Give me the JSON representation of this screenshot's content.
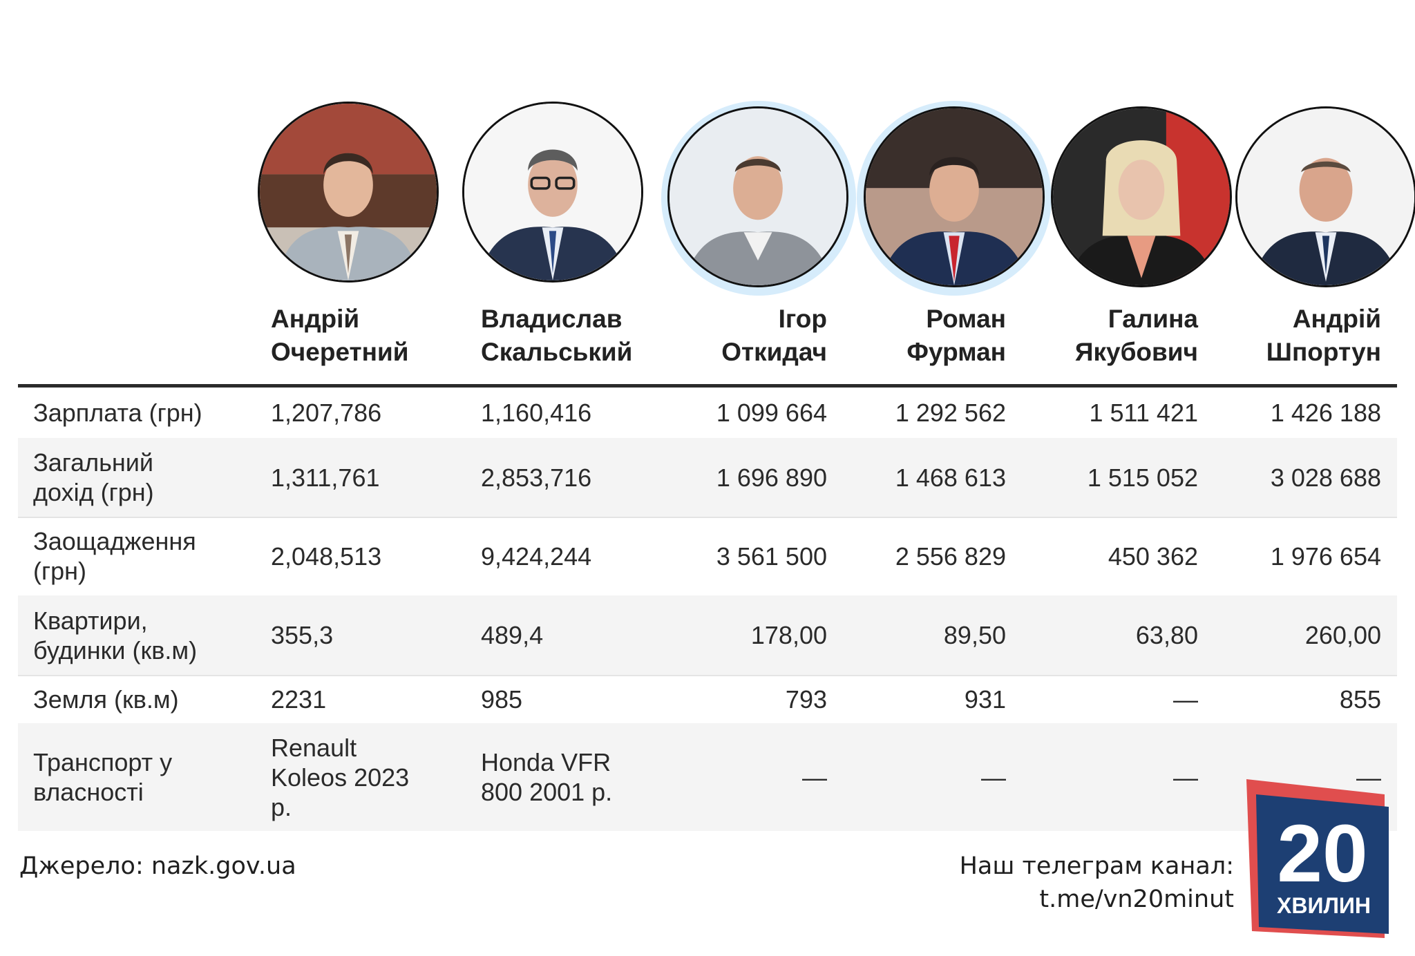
{
  "people": [
    {
      "first": "Андрій",
      "last": "Очеретний"
    },
    {
      "first": "Владислав",
      "last": "Скальський"
    },
    {
      "first": "Ігор",
      "last": "Откидач"
    },
    {
      "first": "Роман",
      "last": "Фурман"
    },
    {
      "first": "Галина",
      "last": "Якубович"
    },
    {
      "first": "Андрій",
      "last": "Шпортун"
    }
  ],
  "rows": [
    {
      "label": [
        "Зарплата (грн)"
      ],
      "values": [
        [
          "1,207,786"
        ],
        [
          "1,160,416"
        ],
        [
          "1 099 664"
        ],
        [
          "1 292 562"
        ],
        [
          "1 511 421"
        ],
        [
          "1 426 188"
        ]
      ]
    },
    {
      "label": [
        "Загальний",
        "дохід (грн)"
      ],
      "values": [
        [
          "1,311,761"
        ],
        [
          "2,853,716"
        ],
        [
          "1 696 890"
        ],
        [
          "1 468 613"
        ],
        [
          "1 515 052"
        ],
        [
          "3 028 688"
        ]
      ]
    },
    {
      "label": [
        "Заощадження",
        "(грн)"
      ],
      "values": [
        [
          "2,048,513"
        ],
        [
          "9,424,244"
        ],
        [
          "3 561 500"
        ],
        [
          "2 556 829"
        ],
        [
          "450 362"
        ],
        [
          "1 976 654"
        ]
      ]
    },
    {
      "label": [
        "Квартири,",
        "будинки (кв.м)"
      ],
      "values": [
        [
          "355,3"
        ],
        [
          "489,4"
        ],
        [
          "178,00"
        ],
        [
          "89,50"
        ],
        [
          "63,80"
        ],
        [
          "260,00"
        ]
      ]
    },
    {
      "label": [
        "Земля (кв.м)"
      ],
      "values": [
        [
          "2231"
        ],
        [
          "985"
        ],
        [
          "793"
        ],
        [
          "931"
        ],
        [
          "—"
        ],
        [
          "855"
        ]
      ]
    },
    {
      "label": [
        "Транспорт у",
        "власності"
      ],
      "values": [
        [
          "Renault",
          "Koleos 2023",
          "р."
        ],
        [
          "Honda VFR",
          "800 2001 р."
        ],
        [
          "—"
        ],
        [
          "—"
        ],
        [
          "—"
        ],
        [
          "—"
        ]
      ]
    }
  ],
  "footer": {
    "source": "Джерело: nazk.gov.ua",
    "telegram_label": "Наш телеграм канал:",
    "telegram_link": "t.me/vn20minut"
  },
  "logo": {
    "number": "20",
    "word": "ХВИЛИН"
  },
  "colors": {
    "logo_blue": "#1d3f73",
    "logo_red": "#e04e4e",
    "rule": "#2b2b2b",
    "row_shade": "#f4f4f4"
  }
}
